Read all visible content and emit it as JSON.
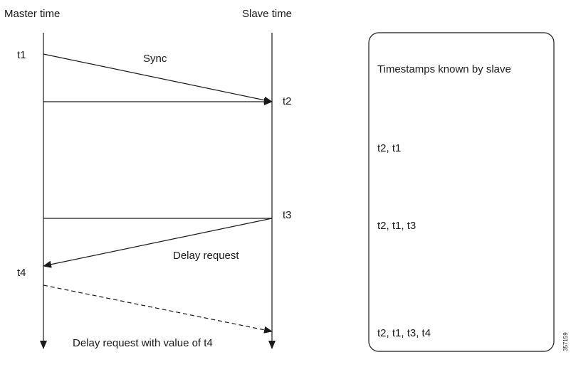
{
  "master_label": "Master time",
  "slave_label": "Slave time",
  "timestamps": {
    "t1": "t1",
    "t2": "t2",
    "t3": "t3",
    "t4": "t4"
  },
  "messages": {
    "sync": "Sync",
    "delay_request": "Delay request",
    "delay_response": "Delay request with value of t4"
  },
  "panel": {
    "title": "Timestamps known by slave",
    "rows": [
      "t2, t1",
      "t2, t1, t3",
      "t2, t1, t3, t4"
    ]
  },
  "figure_id": "357159"
}
